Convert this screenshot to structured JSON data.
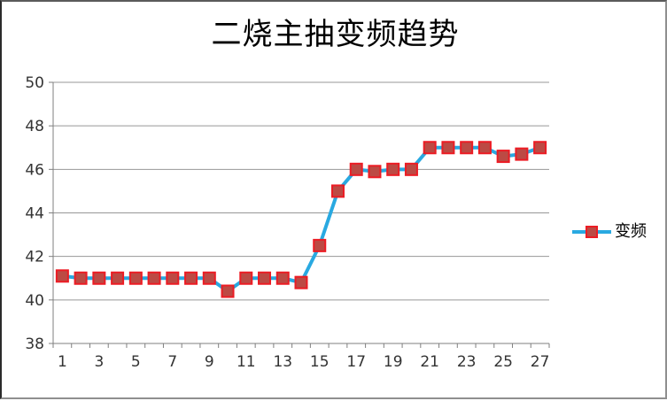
{
  "chart_data": {
    "type": "line",
    "title": "二烧主抽变频趋势",
    "x": [
      1,
      2,
      3,
      4,
      5,
      6,
      7,
      8,
      9,
      10,
      11,
      12,
      13,
      14,
      15,
      16,
      17,
      18,
      19,
      20,
      21,
      22,
      23,
      24,
      25,
      26,
      27
    ],
    "series": [
      {
        "name": "变频",
        "values": [
          41.1,
          41,
          41,
          41,
          41,
          41,
          41,
          41,
          41,
          40.4,
          41,
          41,
          41,
          40.8,
          42.5,
          45,
          46,
          45.9,
          46,
          46,
          47,
          47,
          47,
          47,
          46.6,
          46.7,
          47
        ]
      }
    ],
    "xlabel": "",
    "ylabel": "",
    "ylim": [
      38,
      50
    ],
    "ytick_step": 2,
    "ytick_labels": [
      "38",
      "40",
      "42",
      "44",
      "46",
      "48",
      "50"
    ],
    "xtick_labels": [
      "1",
      "3",
      "5",
      "7",
      "9",
      "11",
      "13",
      "15",
      "17",
      "19",
      "21",
      "23",
      "25",
      "27"
    ],
    "grid": "horizontal-only",
    "legend_position": "right",
    "colors": {
      "line": "#29a9e1",
      "marker_fill": "#bc4a44",
      "marker_stroke": "#ec1c24",
      "grid": "#979797",
      "axis": "#7f7f7f",
      "tick_label": "#333333",
      "title": "#000000",
      "background": "#ffffff"
    }
  },
  "legend": {
    "label": "变频"
  }
}
